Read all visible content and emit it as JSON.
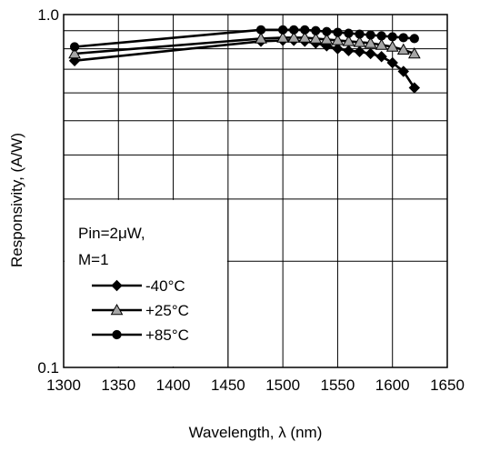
{
  "chart_data": {
    "type": "line",
    "xlabel": "Wavelength, λ (nm)",
    "ylabel": "Responsivity, (A/W)",
    "xlim": [
      1300,
      1650
    ],
    "ylim": [
      0.1,
      1.0
    ],
    "yscale": "log",
    "x_ticks": [
      "1300",
      "1350",
      "1400",
      "1450",
      "1500",
      "1550",
      "1600",
      "1650"
    ],
    "y_ticks": [
      "0.1",
      "1.0"
    ],
    "grid": true,
    "annotation_lines": [
      "Pin=2μW,",
      "M=1"
    ],
    "legend_position": "bottom-left",
    "series": [
      {
        "name": "-40°C",
        "marker": "diamond",
        "marker_color": "#000000",
        "x": [
          1310,
          1480,
          1500,
          1510,
          1520,
          1530,
          1540,
          1550,
          1560,
          1570,
          1580,
          1590,
          1600,
          1610,
          1620
        ],
        "y": [
          0.74,
          0.84,
          0.845,
          0.845,
          0.84,
          0.83,
          0.815,
          0.8,
          0.79,
          0.785,
          0.775,
          0.76,
          0.73,
          0.69,
          0.62
        ]
      },
      {
        "name": "+25°C",
        "marker": "triangle",
        "marker_color": "#a6a6a6",
        "x": [
          1310,
          1480,
          1500,
          1510,
          1520,
          1530,
          1540,
          1550,
          1560,
          1570,
          1580,
          1590,
          1600,
          1610,
          1620
        ],
        "y": [
          0.775,
          0.855,
          0.86,
          0.86,
          0.86,
          0.855,
          0.85,
          0.845,
          0.84,
          0.835,
          0.83,
          0.82,
          0.81,
          0.795,
          0.775
        ]
      },
      {
        "name": "+85°C",
        "marker": "circle",
        "marker_color": "#000000",
        "x": [
          1310,
          1480,
          1500,
          1510,
          1520,
          1530,
          1540,
          1550,
          1560,
          1570,
          1580,
          1590,
          1600,
          1610,
          1620
        ],
        "y": [
          0.81,
          0.905,
          0.905,
          0.905,
          0.905,
          0.9,
          0.895,
          0.89,
          0.885,
          0.88,
          0.875,
          0.87,
          0.865,
          0.86,
          0.855
        ]
      }
    ]
  }
}
